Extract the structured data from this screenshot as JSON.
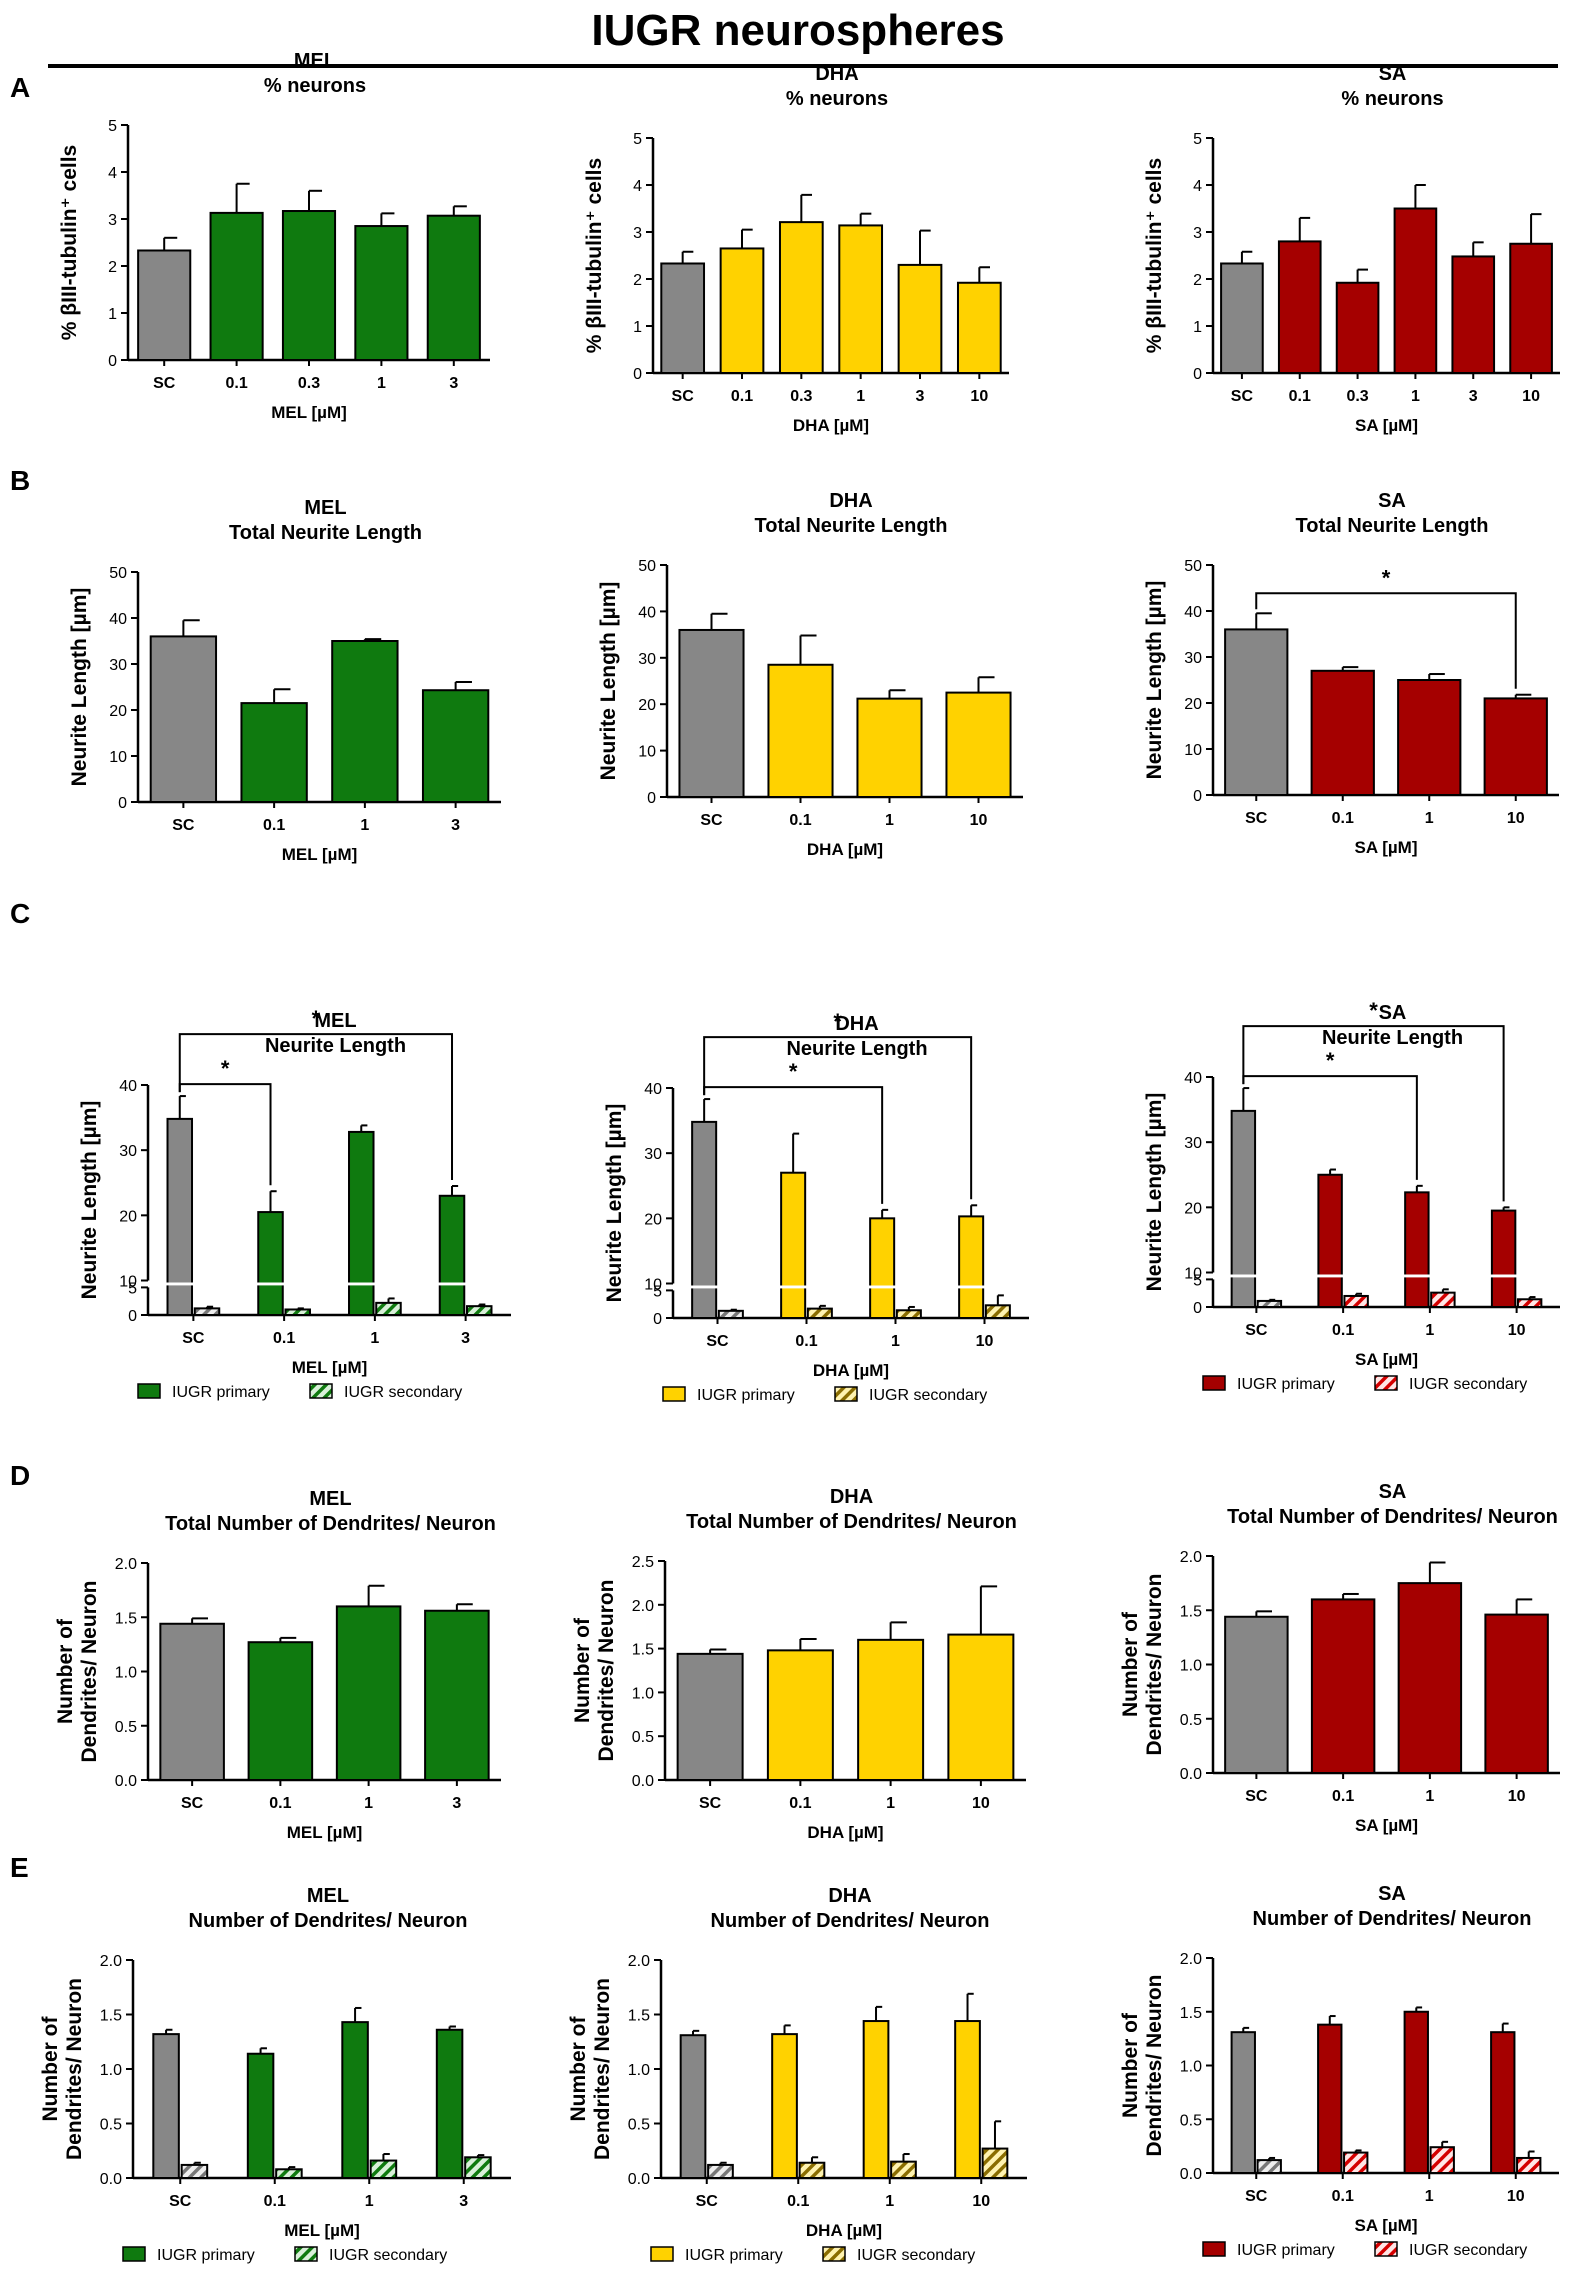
{
  "figure": {
    "title": "IUGR neurospheres"
  },
  "panel_labels": [
    "A",
    "B",
    "C",
    "D",
    "E"
  ],
  "colors": {
    "sc": "#878787",
    "MEL": "#0f7a0f",
    "DHA": "#ffd200",
    "SA": "#a50000",
    "axis": "#000000"
  },
  "chart_data": [
    {
      "id": "A-MEL",
      "type": "bar",
      "title": "MEL",
      "subtitle": "% neurons",
      "ylabel": "% βIII-tubulin⁺ cells",
      "xlabel": "MEL [µM]",
      "categories": [
        "SC",
        "0.1",
        "0.3",
        "1",
        "3"
      ],
      "values": [
        2.33,
        3.13,
        3.17,
        2.85,
        3.07
      ],
      "errors": [
        0.27,
        0.62,
        0.43,
        0.27,
        0.2
      ],
      "ylim": [
        0,
        5
      ],
      "yticks": [
        "0",
        "1",
        "2",
        "3",
        "4",
        "5"
      ],
      "palette": "MEL",
      "significance": []
    },
    {
      "id": "A-DHA",
      "type": "bar",
      "title": "DHA",
      "subtitle": "% neurons",
      "ylabel": "% βIII-tubulin⁺ cells",
      "xlabel": "DHA [µM]",
      "categories": [
        "SC",
        "0.1",
        "0.3",
        "1",
        "3",
        "10"
      ],
      "values": [
        2.33,
        2.65,
        3.21,
        3.14,
        2.3,
        1.92
      ],
      "errors": [
        0.25,
        0.4,
        0.58,
        0.25,
        0.73,
        0.33
      ],
      "ylim": [
        0,
        5
      ],
      "yticks": [
        "0",
        "1",
        "2",
        "3",
        "4",
        "5"
      ],
      "palette": "DHA",
      "significance": []
    },
    {
      "id": "A-SA",
      "type": "bar",
      "title": "SA",
      "subtitle": "% neurons",
      "ylabel": "% βIII-tubulin⁺ cells",
      "xlabel": "SA [µM]",
      "categories": [
        "SC",
        "0.1",
        "0.3",
        "1",
        "3",
        "10"
      ],
      "values": [
        2.33,
        2.8,
        1.92,
        3.5,
        2.48,
        2.75
      ],
      "errors": [
        0.25,
        0.5,
        0.28,
        0.5,
        0.3,
        0.63
      ],
      "ylim": [
        0,
        5
      ],
      "yticks": [
        "0",
        "1",
        "2",
        "3",
        "4",
        "5"
      ],
      "palette": "SA",
      "significance": []
    },
    {
      "id": "B-MEL",
      "type": "bar",
      "title": "MEL",
      "subtitle": "Total Neurite Length",
      "ylabel": "Neurite Length [µm]",
      "xlabel": "MEL [µM]",
      "categories": [
        "SC",
        "0.1",
        "1",
        "3"
      ],
      "values": [
        36,
        21.5,
        35,
        24.3
      ],
      "errors": [
        3.5,
        3,
        0.4,
        1.8
      ],
      "ylim": [
        0,
        50
      ],
      "yticks": [
        "0",
        "10",
        "20",
        "30",
        "40",
        "50"
      ],
      "palette": "MEL",
      "significance": []
    },
    {
      "id": "B-DHA",
      "type": "bar",
      "title": "DHA",
      "subtitle": "Total Neurite Length",
      "ylabel": "Neurite Length [µm]",
      "xlabel": "DHA [µM]",
      "categories": [
        "SC",
        "0.1",
        "1",
        "10"
      ],
      "values": [
        36,
        28.5,
        21.2,
        22.5
      ],
      "errors": [
        3.5,
        6.3,
        1.8,
        3.3
      ],
      "ylim": [
        0,
        50
      ],
      "yticks": [
        "0",
        "10",
        "20",
        "30",
        "40",
        "50"
      ],
      "palette": "DHA",
      "significance": []
    },
    {
      "id": "B-SA",
      "type": "bar",
      "title": "SA",
      "subtitle": "Total Neurite Length",
      "ylabel": "Neurite Length [µm]",
      "xlabel": "SA [µM]",
      "categories": [
        "SC",
        "0.1",
        "1",
        "10"
      ],
      "values": [
        36,
        27,
        25,
        21
      ],
      "errors": [
        3.5,
        0.8,
        1.3,
        0.8
      ],
      "ylim": [
        0,
        50
      ],
      "yticks": [
        "0",
        "10",
        "20",
        "30",
        "40",
        "50"
      ],
      "palette": "SA",
      "significance": [
        {
          "from": 0,
          "to": 3,
          "label": "*"
        }
      ]
    },
    {
      "id": "C-MEL",
      "type": "bar",
      "title": "MEL",
      "subtitle": "Neurite Length",
      "ylabel": "Neurite Length [µm]",
      "xlabel": "MEL [µM]",
      "categories": [
        "SC",
        "0.1",
        "1",
        "3"
      ],
      "series": [
        {
          "name": "IUGR primary",
          "values": [
            34.8,
            20.5,
            32.8,
            23
          ],
          "errors": [
            3.5,
            3.2,
            1,
            1.5
          ]
        },
        {
          "name": "IUGR secondary",
          "values": [
            1.2,
            1,
            2.2,
            1.6
          ],
          "errors": [
            0.3,
            0.2,
            0.8,
            0.3
          ]
        }
      ],
      "ylim": [
        0,
        40
      ],
      "axis_break": [
        5,
        10
      ],
      "yticks": [
        "0",
        "5",
        "10",
        "20",
        "30",
        "40"
      ],
      "palette": "MEL",
      "legend": [
        "IUGR primary",
        "IUGR secondary"
      ],
      "significance": [
        {
          "from": 0,
          "to": 1,
          "label": "*"
        },
        {
          "from": 0,
          "to": 3,
          "label": "*"
        }
      ]
    },
    {
      "id": "C-DHA",
      "type": "bar",
      "title": "DHA",
      "subtitle": "Neurite Length",
      "ylabel": "Neurite Length [µm]",
      "xlabel": "DHA [µM]",
      "categories": [
        "SC",
        "0.1",
        "1",
        "10"
      ],
      "series": [
        {
          "name": "IUGR primary",
          "values": [
            34.8,
            27,
            20,
            20.3
          ],
          "errors": [
            3.5,
            6,
            1.3,
            1.7
          ]
        },
        {
          "name": "IUGR secondary",
          "values": [
            1.3,
            1.7,
            1.4,
            2.3
          ],
          "errors": [
            0.2,
            0.5,
            0.6,
            1.8
          ]
        }
      ],
      "ylim": [
        0,
        40
      ],
      "axis_break": [
        5,
        10
      ],
      "yticks": [
        "0",
        "5",
        "10",
        "20",
        "30",
        "40"
      ],
      "palette": "DHA",
      "legend": [
        "IUGR primary",
        "IUGR secondary"
      ],
      "significance": [
        {
          "from": 0,
          "to": 2,
          "label": "*"
        },
        {
          "from": 0,
          "to": 3,
          "label": "*"
        }
      ]
    },
    {
      "id": "C-SA",
      "type": "bar",
      "title": "SA",
      "subtitle": "Neurite Length",
      "ylabel": "Neurite Length [µm]",
      "xlabel": "SA [µM]",
      "categories": [
        "SC",
        "0.1",
        "1",
        "10"
      ],
      "series": [
        {
          "name": "IUGR primary",
          "values": [
            34.8,
            25,
            22.3,
            19.5
          ],
          "errors": [
            3.5,
            0.8,
            1,
            0.5
          ]
        },
        {
          "name": "IUGR secondary",
          "values": [
            1.1,
            2,
            2.6,
            1.4
          ],
          "errors": [
            0.2,
            0.4,
            0.6,
            0.4
          ]
        }
      ],
      "ylim": [
        0,
        40
      ],
      "axis_break": [
        5,
        10
      ],
      "yticks": [
        "0",
        "5",
        "10",
        "20",
        "30",
        "40"
      ],
      "palette": "SA",
      "legend": [
        "IUGR primary",
        "IUGR secondary"
      ],
      "significance": [
        {
          "from": 0,
          "to": 2,
          "label": "*"
        },
        {
          "from": 0,
          "to": 3,
          "label": "*"
        }
      ]
    },
    {
      "id": "D-MEL",
      "type": "bar",
      "title": "MEL",
      "subtitle": "Total Number of Dendrites/ Neuron",
      "ylabel": "Number of|Dendrites/ Neuron",
      "xlabel": "MEL [µM]",
      "categories": [
        "SC",
        "0.1",
        "1",
        "3"
      ],
      "values": [
        1.44,
        1.27,
        1.6,
        1.56
      ],
      "errors": [
        0.05,
        0.04,
        0.19,
        0.06
      ],
      "ylim": [
        0,
        2
      ],
      "yticks": [
        "0.0",
        "0.5",
        "1.0",
        "1.5",
        "2.0"
      ],
      "palette": "MEL",
      "significance": []
    },
    {
      "id": "D-DHA",
      "type": "bar",
      "title": "DHA",
      "subtitle": "Total Number of Dendrites/ Neuron",
      "ylabel": "Number of|Dendrites/ Neuron",
      "xlabel": "DHA [µM]",
      "categories": [
        "SC",
        "0.1",
        "1",
        "10"
      ],
      "values": [
        1.44,
        1.48,
        1.6,
        1.66
      ],
      "errors": [
        0.05,
        0.13,
        0.2,
        0.55
      ],
      "ylim": [
        0,
        2.5
      ],
      "yticks": [
        "0.0",
        "0.5",
        "1.0",
        "1.5",
        "2.0",
        "2.5"
      ],
      "palette": "DHA",
      "significance": []
    },
    {
      "id": "D-SA",
      "type": "bar",
      "title": "SA",
      "subtitle": "Total Number of Dendrites/ Neuron",
      "ylabel": "Number of|Dendrites/ Neuron",
      "xlabel": "SA [µM]",
      "categories": [
        "SC",
        "0.1",
        "1",
        "10"
      ],
      "values": [
        1.44,
        1.6,
        1.75,
        1.46
      ],
      "errors": [
        0.05,
        0.05,
        0.19,
        0.14
      ],
      "ylim": [
        0,
        2
      ],
      "yticks": [
        "0.0",
        "0.5",
        "1.0",
        "1.5",
        "2.0"
      ],
      "palette": "SA",
      "significance": []
    },
    {
      "id": "E-MEL",
      "type": "bar",
      "title": "MEL",
      "subtitle": "Number of Dendrites/ Neuron",
      "ylabel": "Number of|Dendrites/ Neuron",
      "xlabel": "MEL [µM]",
      "categories": [
        "SC",
        "0.1",
        "1",
        "3"
      ],
      "series": [
        {
          "name": "IUGR primary",
          "values": [
            1.32,
            1.14,
            1.43,
            1.36
          ],
          "errors": [
            0.04,
            0.05,
            0.13,
            0.03
          ]
        },
        {
          "name": "IUGR secondary",
          "values": [
            0.12,
            0.08,
            0.16,
            0.19
          ],
          "errors": [
            0.02,
            0.02,
            0.06,
            0.02
          ]
        }
      ],
      "ylim": [
        0,
        2
      ],
      "yticks": [
        "0.0",
        "0.5",
        "1.0",
        "1.5",
        "2.0"
      ],
      "palette": "MEL",
      "legend": [
        "IUGR primary",
        "IUGR secondary"
      ],
      "significance": []
    },
    {
      "id": "E-DHA",
      "type": "bar",
      "title": "DHA",
      "subtitle": "Number of Dendrites/ Neuron",
      "ylabel": "Number of|Dendrites/ Neuron",
      "xlabel": "DHA [µM]",
      "categories": [
        "SC",
        "0.1",
        "1",
        "10"
      ],
      "series": [
        {
          "name": "IUGR primary",
          "values": [
            1.31,
            1.32,
            1.44,
            1.44
          ],
          "errors": [
            0.04,
            0.08,
            0.13,
            0.25
          ]
        },
        {
          "name": "IUGR secondary",
          "values": [
            0.12,
            0.14,
            0.15,
            0.27
          ],
          "errors": [
            0.02,
            0.05,
            0.07,
            0.25
          ]
        }
      ],
      "ylim": [
        0,
        2
      ],
      "yticks": [
        "0.0",
        "0.5",
        "1.0",
        "1.5",
        "2.0"
      ],
      "palette": "DHA",
      "legend": [
        "IUGR primary",
        "IUGR secondary"
      ],
      "significance": []
    },
    {
      "id": "E-SA",
      "type": "bar",
      "title": "SA",
      "subtitle": "Number of Dendrites/ Neuron",
      "ylabel": "Number of|Dendrites/ Neuron",
      "xlabel": "SA [µM]",
      "categories": [
        "SC",
        "0.1",
        "1",
        "10"
      ],
      "series": [
        {
          "name": "IUGR primary",
          "values": [
            1.31,
            1.38,
            1.5,
            1.31
          ],
          "errors": [
            0.04,
            0.08,
            0.04,
            0.08
          ]
        },
        {
          "name": "IUGR secondary",
          "values": [
            0.12,
            0.19,
            0.24,
            0.14
          ],
          "errors": [
            0.02,
            0.02,
            0.05,
            0.06
          ]
        }
      ],
      "ylim": [
        0,
        2
      ],
      "yticks": [
        "0.0",
        "0.5",
        "1.0",
        "1.5",
        "2.0"
      ],
      "palette": "SA",
      "legend": [
        "IUGR primary",
        "IUGR secondary"
      ],
      "significance": []
    }
  ]
}
